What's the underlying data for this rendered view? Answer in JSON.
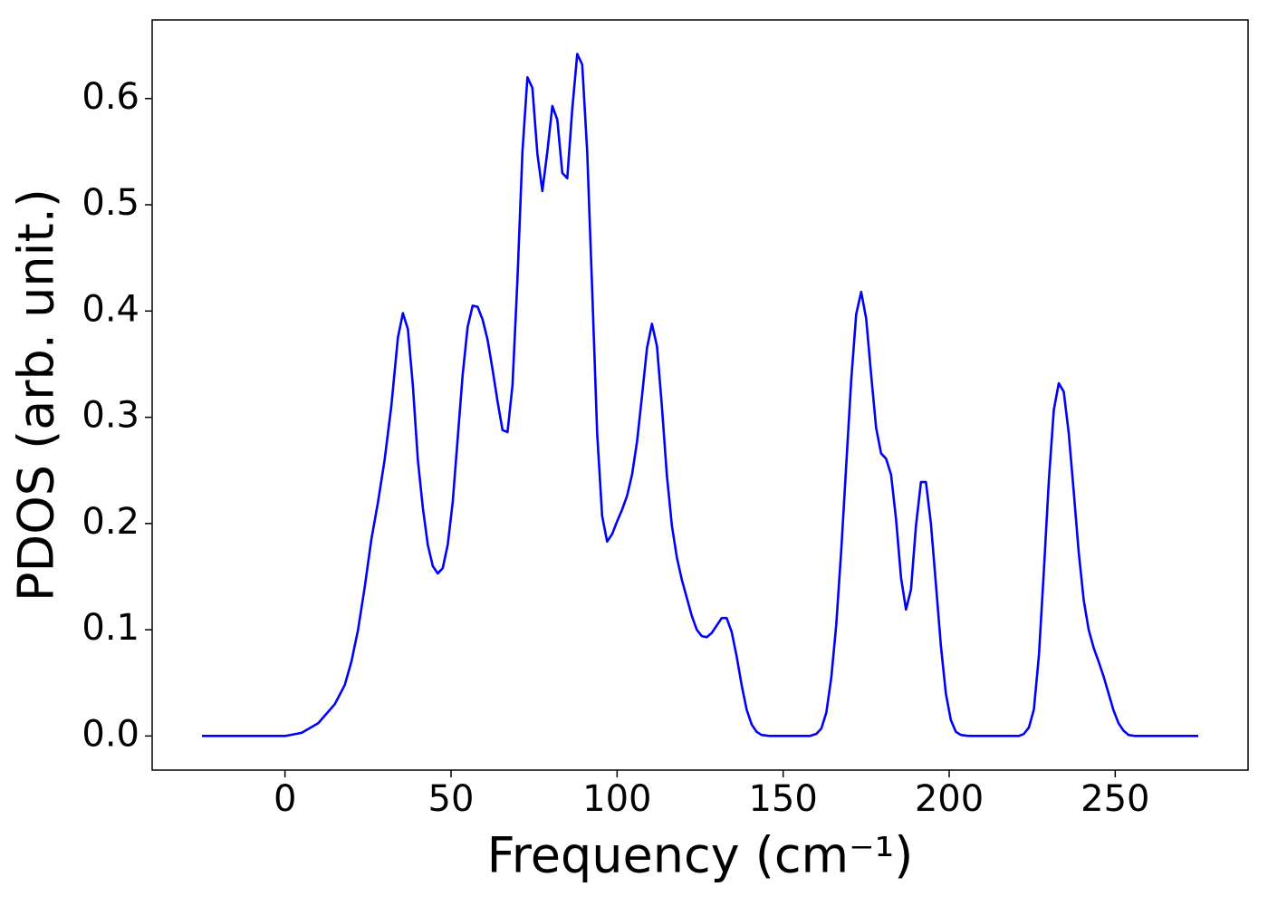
{
  "chart_data": {
    "type": "line",
    "xlabel": "Frequency (cm⁻¹)",
    "ylabel": "PDOS (arb. unit.)",
    "x": [
      -25,
      0,
      5,
      10,
      15,
      18,
      20,
      22,
      24,
      26,
      28,
      30,
      32,
      34,
      35.5,
      37,
      38.5,
      40,
      41.5,
      43,
      44.5,
      46,
      47.5,
      49,
      50.5,
      52,
      53.5,
      55,
      56.5,
      58,
      59.5,
      61,
      62.5,
      64,
      65.5,
      67,
      68.5,
      70,
      71.5,
      73,
      74.5,
      76,
      77.5,
      79,
      80.5,
      82,
      83.5,
      85,
      86.5,
      88,
      89.5,
      91,
      92.5,
      94,
      95.5,
      97,
      98.5,
      100,
      101.5,
      103,
      104.5,
      106,
      107.5,
      109,
      110.5,
      112,
      113.5,
      115,
      116.5,
      118,
      119.5,
      121,
      122.5,
      124,
      125.5,
      127,
      128.5,
      130,
      131.5,
      133,
      134.5,
      136,
      137.5,
      139,
      140.5,
      142,
      143.5,
      146,
      158,
      160,
      161.5,
      163,
      164.5,
      166,
      167.5,
      169,
      170.5,
      172,
      173.5,
      175,
      176.5,
      178,
      179.5,
      181,
      182.5,
      184,
      185.5,
      187,
      188.5,
      190,
      191.5,
      193,
      194.5,
      196,
      197.5,
      199,
      200.5,
      202,
      203.5,
      206,
      221,
      222.5,
      224,
      225.5,
      227,
      228.5,
      230,
      231.5,
      233,
      234.5,
      236,
      237.5,
      239,
      240.5,
      242,
      243.5,
      245,
      246.5,
      248,
      249.5,
      251,
      252.5,
      254,
      256,
      275
    ],
    "series": [
      {
        "name": "PDOS",
        "color": "#0000ff",
        "values": [
          0,
          0,
          0.003,
          0.012,
          0.03,
          0.048,
          0.07,
          0.1,
          0.14,
          0.185,
          0.22,
          0.26,
          0.31,
          0.375,
          0.398,
          0.383,
          0.33,
          0.26,
          0.215,
          0.18,
          0.16,
          0.153,
          0.158,
          0.18,
          0.22,
          0.28,
          0.34,
          0.385,
          0.405,
          0.404,
          0.392,
          0.373,
          0.345,
          0.315,
          0.288,
          0.286,
          0.33,
          0.43,
          0.55,
          0.62,
          0.61,
          0.548,
          0.513,
          0.55,
          0.593,
          0.58,
          0.53,
          0.525,
          0.59,
          0.642,
          0.632,
          0.55,
          0.42,
          0.285,
          0.207,
          0.183,
          0.19,
          0.202,
          0.213,
          0.226,
          0.246,
          0.277,
          0.32,
          0.365,
          0.388,
          0.367,
          0.31,
          0.245,
          0.198,
          0.168,
          0.147,
          0.13,
          0.113,
          0.1,
          0.094,
          0.093,
          0.097,
          0.104,
          0.111,
          0.111,
          0.098,
          0.075,
          0.048,
          0.025,
          0.011,
          0.004,
          0.001,
          0,
          0,
          0.002,
          0.007,
          0.022,
          0.055,
          0.105,
          0.175,
          0.255,
          0.335,
          0.397,
          0.418,
          0.393,
          0.34,
          0.29,
          0.266,
          0.261,
          0.246,
          0.204,
          0.149,
          0.119,
          0.138,
          0.198,
          0.239,
          0.239,
          0.2,
          0.143,
          0.085,
          0.04,
          0.015,
          0.004,
          0.001,
          0,
          0,
          0.002,
          0.008,
          0.025,
          0.075,
          0.155,
          0.24,
          0.307,
          0.332,
          0.324,
          0.285,
          0.23,
          0.173,
          0.128,
          0.1,
          0.083,
          0.07,
          0.056,
          0.04,
          0.024,
          0.012,
          0.005,
          0.001,
          0,
          0
        ]
      }
    ],
    "xlim": [
      -40,
      290
    ],
    "ylim": [
      -0.0321,
      0.674
    ],
    "xticks": [
      0,
      50,
      100,
      150,
      200,
      250
    ],
    "yticks": [
      {
        "value": 0,
        "label": "0.0"
      },
      0.1,
      0.2,
      0.3,
      0.4,
      0.5,
      0.6
    ],
    "grid": false
  }
}
